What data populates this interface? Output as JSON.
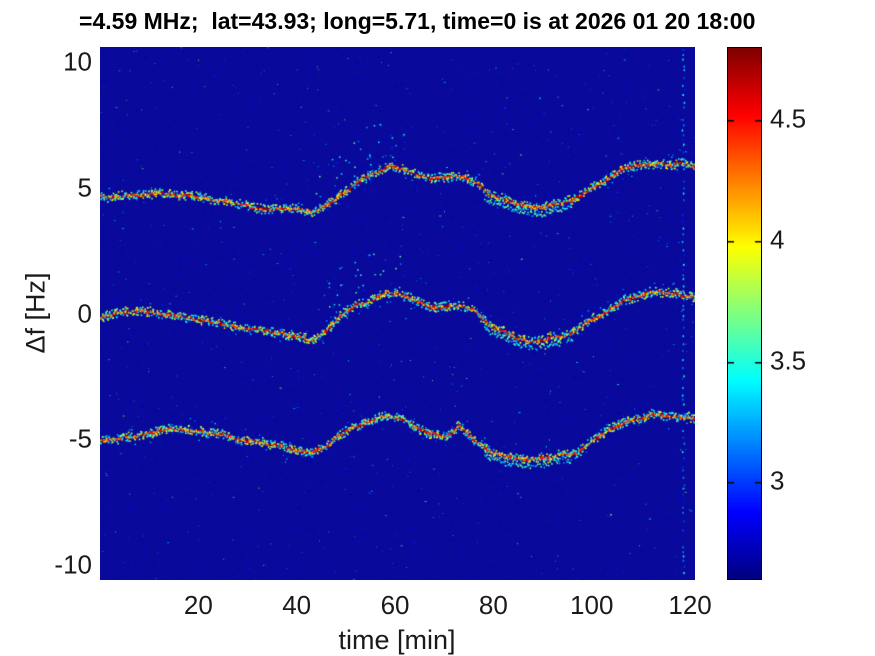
{
  "title": "=4.59 MHz;  lat=43.93; long=5.71, time=0 is at 2026 01 20 18:00",
  "chart_data": {
    "type": "heatmap",
    "title": "=4.59 MHz;  lat=43.93; long=5.71, time=0 is at 2026 01 20 18:00",
    "xlabel": "time [min]",
    "ylabel": "Δf [Hz]",
    "xlim": [
      0,
      121
    ],
    "ylim": [
      -10.6,
      10.6
    ],
    "x_ticks": [
      20,
      40,
      60,
      80,
      100,
      120
    ],
    "y_ticks": [
      10,
      5,
      0,
      -5,
      -10
    ],
    "grid": false,
    "colormap": "jet",
    "background_color": "#09099b",
    "colorbar": {
      "min": 2.6,
      "max": 4.8,
      "ticks": [
        4.5,
        4,
        3.5,
        3
      ],
      "position": "right"
    },
    "series": [
      {
        "name": "upper-doppler-trace",
        "x": [
          0,
          4,
          8,
          12,
          16,
          20,
          24,
          28,
          32,
          36,
          40,
          43,
          46,
          49,
          52,
          55,
          58,
          61,
          64,
          67,
          70,
          73,
          76,
          79,
          82,
          85,
          88,
          91,
          94,
          97,
          100,
          103,
          106,
          109,
          112,
          115,
          118,
          121
        ],
        "y": [
          4.7,
          4.8,
          4.85,
          4.85,
          4.8,
          4.75,
          4.6,
          4.45,
          4.3,
          4.2,
          4.1,
          4.0,
          4.3,
          4.8,
          5.3,
          5.65,
          5.9,
          5.8,
          5.6,
          5.35,
          5.45,
          5.5,
          5.25,
          4.7,
          4.5,
          4.3,
          4.15,
          4.25,
          4.35,
          4.6,
          4.95,
          5.3,
          5.75,
          5.95,
          6.05,
          6.05,
          6.0,
          5.85
        ]
      },
      {
        "name": "carrier-doppler-trace",
        "x": [
          0,
          4,
          8,
          12,
          16,
          20,
          24,
          28,
          32,
          36,
          40,
          43,
          46,
          49,
          52,
          55,
          58,
          61,
          64,
          67,
          70,
          73,
          76,
          79,
          82,
          85,
          88,
          91,
          94,
          97,
          100,
          103,
          106,
          109,
          112,
          115,
          118,
          121
        ],
        "y": [
          -0.15,
          0.0,
          0.05,
          -0.05,
          -0.15,
          -0.25,
          -0.4,
          -0.5,
          -0.65,
          -0.8,
          -0.95,
          -1.1,
          -0.7,
          -0.1,
          0.35,
          0.65,
          0.9,
          0.8,
          0.6,
          0.35,
          0.4,
          0.45,
          0.25,
          -0.35,
          -0.6,
          -0.9,
          -1.0,
          -0.9,
          -0.8,
          -0.55,
          -0.15,
          0.15,
          0.6,
          0.8,
          0.9,
          0.9,
          0.85,
          0.7
        ]
      },
      {
        "name": "lower-doppler-trace",
        "x": [
          0,
          4,
          8,
          12,
          16,
          20,
          24,
          28,
          32,
          36,
          40,
          43,
          46,
          49,
          52,
          55,
          58,
          61,
          64,
          67,
          70,
          73,
          76,
          79,
          82,
          85,
          88,
          91,
          94,
          97,
          100,
          103,
          106,
          109,
          112,
          115,
          118,
          121
        ],
        "y": [
          -5.0,
          -4.95,
          -4.85,
          -4.7,
          -4.6,
          -4.65,
          -4.85,
          -5.0,
          -5.15,
          -5.3,
          -5.45,
          -5.55,
          -5.3,
          -4.8,
          -4.4,
          -4.15,
          -3.95,
          -4.1,
          -4.5,
          -4.85,
          -4.9,
          -4.4,
          -4.95,
          -5.4,
          -5.6,
          -5.75,
          -5.8,
          -5.75,
          -5.65,
          -5.55,
          -5.0,
          -4.6,
          -4.35,
          -4.1,
          -3.95,
          -4.0,
          -4.0,
          -4.1
        ]
      }
    ],
    "artifacts": {
      "vertical_dotted_line_time": 118.5,
      "scatter_burst_time_range": [
        44,
        62
      ],
      "double_strand_time_range": [
        78,
        96
      ]
    }
  }
}
